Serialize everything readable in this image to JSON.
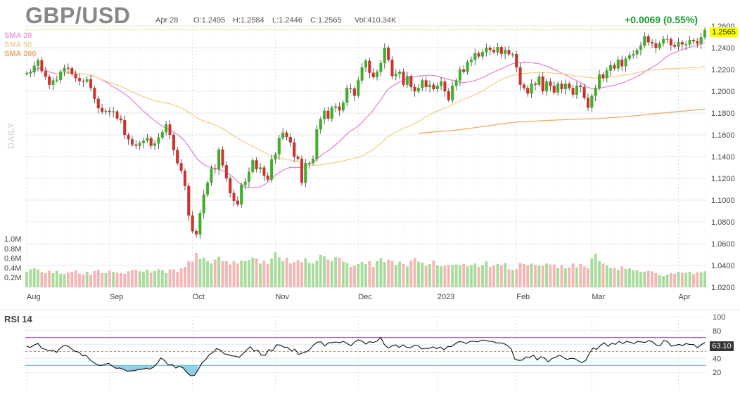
{
  "header": {
    "symbol": "GBP/USD",
    "date": "Apr 28",
    "open": "O:1.2495",
    "high": "H:1.2584",
    "low": "L:1.2446",
    "close": "C:1.2565",
    "volume": "Vol:410.34K",
    "change": "+0.0069 (0.55%)"
  },
  "legend": {
    "sma20": "SMA 20",
    "sma50": "SMA 50",
    "sma200": "SMA 200",
    "period": "DAILY"
  },
  "rsi_label": "RSI 14",
  "last_price_tag": "1.2565",
  "last_rsi_tag": "63.10",
  "colors": {
    "up": "#3fae2a",
    "down": "#d0312d",
    "vol_up": "#a6dc9a",
    "vol_down": "#f5b5b5",
    "sma20": "#e389d6",
    "sma50": "#f3d08c",
    "sma200": "#f0a868",
    "rsi_line": "#111111",
    "rsi_upper": "#b04fb0",
    "rsi_lower": "#5cb8d6",
    "rsi_fill_low": "#7ec8e3"
  },
  "chart_data": [
    {
      "type": "candlestick",
      "title": "GBP/USD",
      "x_labels": [
        "Aug",
        "Sep",
        "Oct",
        "Nov",
        "Dec",
        "2023",
        "Feb",
        "Mar",
        "Apr"
      ],
      "y_ticks": [
        "1.0200",
        "1.0400",
        "1.0600",
        "1.0800",
        "1.1000",
        "1.1200",
        "1.1400",
        "1.1600",
        "1.1800",
        "1.2000",
        "1.2200",
        "1.2400",
        "1.2600"
      ],
      "y_range": [
        1.02,
        1.26
      ],
      "last_close": 1.2565,
      "series_sma": [
        "SMA 20",
        "SMA 50",
        "SMA 200"
      ],
      "closes": [
        1.2165,
        1.2175,
        1.2235,
        1.2285,
        1.2185,
        1.2135,
        1.206,
        1.21,
        1.2105,
        1.218,
        1.2215,
        1.221,
        1.216,
        1.212,
        1.2095,
        1.209,
        1.211,
        1.203,
        1.193,
        1.1845,
        1.181,
        1.182,
        1.181,
        1.1815,
        1.175,
        1.1735,
        1.16,
        1.156,
        1.151,
        1.15,
        1.1525,
        1.1545,
        1.157,
        1.15,
        1.152,
        1.1575,
        1.1625,
        1.1695,
        1.16,
        1.146,
        1.134,
        1.127,
        1.113,
        1.086,
        1.0715,
        1.0685,
        1.088,
        1.105,
        1.116,
        1.129,
        1.1285,
        1.1465,
        1.132,
        1.12,
        1.1065,
        1.0995,
        1.096,
        1.114,
        1.117,
        1.126,
        1.1365,
        1.1285,
        1.13,
        1.1225,
        1.119,
        1.1375,
        1.142,
        1.157,
        1.162,
        1.158,
        1.153,
        1.14,
        1.138,
        1.116,
        1.134,
        1.134,
        1.138,
        1.165,
        1.1745,
        1.182,
        1.175,
        1.185,
        1.186,
        1.1825,
        1.1895,
        1.203,
        1.2025,
        1.196,
        1.21,
        1.222,
        1.228,
        1.217,
        1.213,
        1.218,
        1.226,
        1.24,
        1.229,
        1.214,
        1.216,
        1.218,
        1.206,
        1.214,
        1.204,
        1.2,
        1.203,
        1.21,
        1.204,
        1.206,
        1.202,
        1.205,
        1.209,
        1.2,
        1.192,
        1.205,
        1.21,
        1.22,
        1.218,
        1.227,
        1.229,
        1.235,
        1.232,
        1.236,
        1.24,
        1.238,
        1.236,
        1.2405,
        1.2345,
        1.238,
        1.234,
        1.234,
        1.222,
        1.206,
        1.203,
        1.198,
        1.207,
        1.206,
        1.2135,
        1.2,
        1.209,
        1.205,
        1.199,
        1.207,
        1.202,
        1.207,
        1.203,
        1.197,
        1.205,
        1.204,
        1.194,
        1.185,
        1.196,
        1.203,
        1.2155,
        1.212,
        1.219,
        1.224,
        1.221,
        1.229,
        1.223,
        1.23,
        1.233,
        1.234,
        1.238,
        1.242,
        1.2505,
        1.245,
        1.244,
        1.24,
        1.244,
        1.248,
        1.248,
        1.2425,
        1.241,
        1.245,
        1.243,
        1.243,
        1.247,
        1.246,
        1.244,
        1.2496,
        1.2565
      ],
      "volumes_M": [
        0.32,
        0.37,
        0.39,
        0.37,
        0.31,
        0.29,
        0.34,
        0.29,
        0.34,
        0.28,
        0.27,
        0.3,
        0.32,
        0.35,
        0.28,
        0.26,
        0.32,
        0.26,
        0.34,
        0.36,
        0.29,
        0.29,
        0.34,
        0.32,
        0.3,
        0.29,
        0.28,
        0.33,
        0.36,
        0.36,
        0.33,
        0.32,
        0.36,
        0.3,
        0.34,
        0.37,
        0.35,
        0.29,
        0.37,
        0.37,
        0.32,
        0.39,
        0.42,
        0.54,
        0.53,
        0.71,
        0.58,
        0.61,
        0.54,
        0.49,
        0.57,
        0.63,
        0.54,
        0.54,
        0.47,
        0.54,
        0.49,
        0.55,
        0.54,
        0.56,
        0.61,
        0.59,
        0.49,
        0.55,
        0.48,
        0.59,
        0.72,
        0.62,
        0.54,
        0.61,
        0.49,
        0.52,
        0.56,
        0.52,
        0.6,
        0.5,
        0.49,
        0.55,
        0.67,
        0.64,
        0.57,
        0.54,
        0.62,
        0.61,
        0.53,
        0.5,
        0.42,
        0.44,
        0.48,
        0.52,
        0.48,
        0.54,
        0.42,
        0.54,
        0.6,
        0.52,
        0.57,
        0.54,
        0.46,
        0.53,
        0.48,
        0.43,
        0.55,
        0.6,
        0.53,
        0.51,
        0.44,
        0.48,
        0.55,
        0.45,
        0.43,
        0.44,
        0.46,
        0.46,
        0.47,
        0.45,
        0.48,
        0.43,
        0.46,
        0.49,
        0.42,
        0.46,
        0.53,
        0.42,
        0.45,
        0.48,
        0.45,
        0.5,
        0.37,
        0.36,
        0.37,
        0.5,
        0.48,
        0.45,
        0.49,
        0.46,
        0.45,
        0.44,
        0.49,
        0.47,
        0.47,
        0.4,
        0.46,
        0.39,
        0.41,
        0.49,
        0.41,
        0.48,
        0.43,
        0.39,
        0.59,
        0.69,
        0.54,
        0.49,
        0.45,
        0.4,
        0.4,
        0.36,
        0.43,
        0.38,
        0.39,
        0.35,
        0.35,
        0.32,
        0.32,
        0.34,
        0.33,
        0.29,
        0.25,
        0.23,
        0.26,
        0.29,
        0.28,
        0.32,
        0.3,
        0.3,
        0.32,
        0.27,
        0.31,
        0.31,
        0.33,
        0.34,
        0.37
      ]
    },
    {
      "type": "line",
      "title": "RSI 14",
      "y_ticks": [
        "20",
        "40",
        "60",
        "80",
        "100"
      ],
      "y_range": [
        0,
        100
      ],
      "upper_band": 70,
      "lower_band": 30,
      "midline": 50,
      "last_value": 63.1,
      "values": [
        57.4,
        56.0,
        59.3,
        61.5,
        54.7,
        53.1,
        50.9,
        51.9,
        48.7,
        55.2,
        58.7,
        57.9,
        53.8,
        50.2,
        49.0,
        43.7,
        44.1,
        38.0,
        34.0,
        30.7,
        29.7,
        31.6,
        33.1,
        28.7,
        25.8,
        26.2,
        24.2,
        21.6,
        22.1,
        22.5,
        24.0,
        24.4,
        26.0,
        24.5,
        27.4,
        32.9,
        40.7,
        36.9,
        30.5,
        31.5,
        26.2,
        28.6,
        26.3,
        19.6,
        15.1,
        15.8,
        23.5,
        33.2,
        38.3,
        45.6,
        48.4,
        54.3,
        51.8,
        46.6,
        45.7,
        43.7,
        43.2,
        41.5,
        46.7,
        52.1,
        56.9,
        50.5,
        52.1,
        44.6,
        44.4,
        52.8,
        51.0,
        59.5,
        59.3,
        56.4,
        55.9,
        50.8,
        53.2,
        45.8,
        48.0,
        49.5,
        53.0,
        59.3,
        63.3,
        63.9,
        57.9,
        62.5,
        62.8,
        63.6,
        62.6,
        64.5,
        61.5,
        58.3,
        63.4,
        66.7,
        65.0,
        60.7,
        64.1,
        62.9,
        65.0,
        70.1,
        59.8,
        55.1,
        57.8,
        59.6,
        55.9,
        59.5,
        55.9,
        55.5,
        58.7,
        58.6,
        53.6,
        54.5,
        54.4,
        56.7,
        54.1,
        56.6,
        52.4,
        57.2,
        57.1,
        61.0,
        64.2,
        63.6,
        61.5,
        64.4,
        64.6,
        63.8,
        66.3,
        66.2,
        64.7,
        64.5,
        62.3,
        62.3,
        61.7,
        58.5,
        53.9,
        39.1,
        37.2,
        37.6,
        42.3,
        41.3,
        44.9,
        37.7,
        42.5,
        40.4,
        35.0,
        40.1,
        41.9,
        44.7,
        41.7,
        38.4,
        40.2,
        39.7,
        36.7,
        33.9,
        37.0,
        47.2,
        55.0,
        53.0,
        58.9,
        62.6,
        57.5,
        61.9,
        60.3,
        64.6,
        61.4,
        64.5,
        63.2,
        61.4,
        64.5,
        63.7,
        62.9,
        66.0,
        63.7,
        59.3,
        58.1,
        66.1,
        64.2,
        57.7,
        58.4,
        60.3,
        58.6,
        61.4,
        60.0,
        60.0,
        55.6,
        59.6,
        63.1
      ]
    }
  ]
}
